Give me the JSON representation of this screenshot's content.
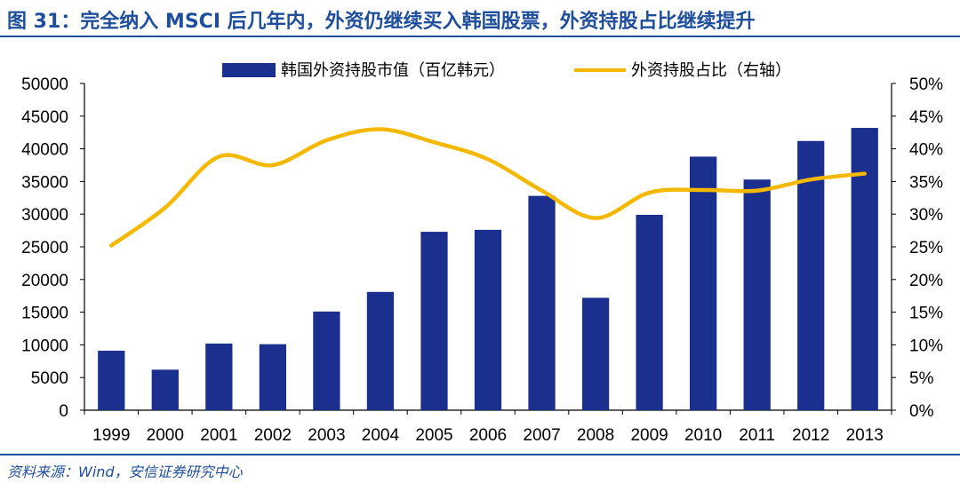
{
  "title": "图 31：完全纳入 MSCI 后几年内，外资仍继续买入韩国股票，外资持股占比继续提升",
  "source": "资料来源：Wind，安信证券研究中心",
  "chart_data": {
    "type": "bar",
    "categories": [
      "1999",
      "2000",
      "2001",
      "2002",
      "2003",
      "2004",
      "2005",
      "2006",
      "2007",
      "2008",
      "2009",
      "2010",
      "2011",
      "2012",
      "2013"
    ],
    "y_ticks": [
      "0",
      "5000",
      "10000",
      "15000",
      "20000",
      "25000",
      "30000",
      "35000",
      "40000",
      "45000",
      "50000"
    ],
    "y2_ticks": [
      "0%",
      "5%",
      "10%",
      "15%",
      "20%",
      "25%",
      "30%",
      "35%",
      "40%",
      "45%",
      "50%"
    ],
    "ylim": [
      0,
      50000
    ],
    "y2lim": [
      0,
      50
    ],
    "grid": false,
    "legend_position": "top",
    "series": [
      {
        "name": "韩国外资持股市值（百亿韩元）",
        "type": "bar",
        "axis": "left",
        "color": "#1b2f8f",
        "values": [
          9100,
          6200,
          10200,
          10100,
          15100,
          18100,
          27300,
          27600,
          32800,
          17200,
          29900,
          38800,
          35300,
          41200,
          43200
        ]
      },
      {
        "name": "外资持股占比（右轴）",
        "type": "line",
        "axis": "right",
        "color": "#f5b800",
        "values": [
          25.2,
          31.0,
          38.8,
          37.5,
          41.3,
          43.0,
          41.0,
          38.4,
          33.6,
          29.4,
          33.3,
          33.7,
          33.6,
          35.3,
          36.2
        ]
      }
    ]
  }
}
